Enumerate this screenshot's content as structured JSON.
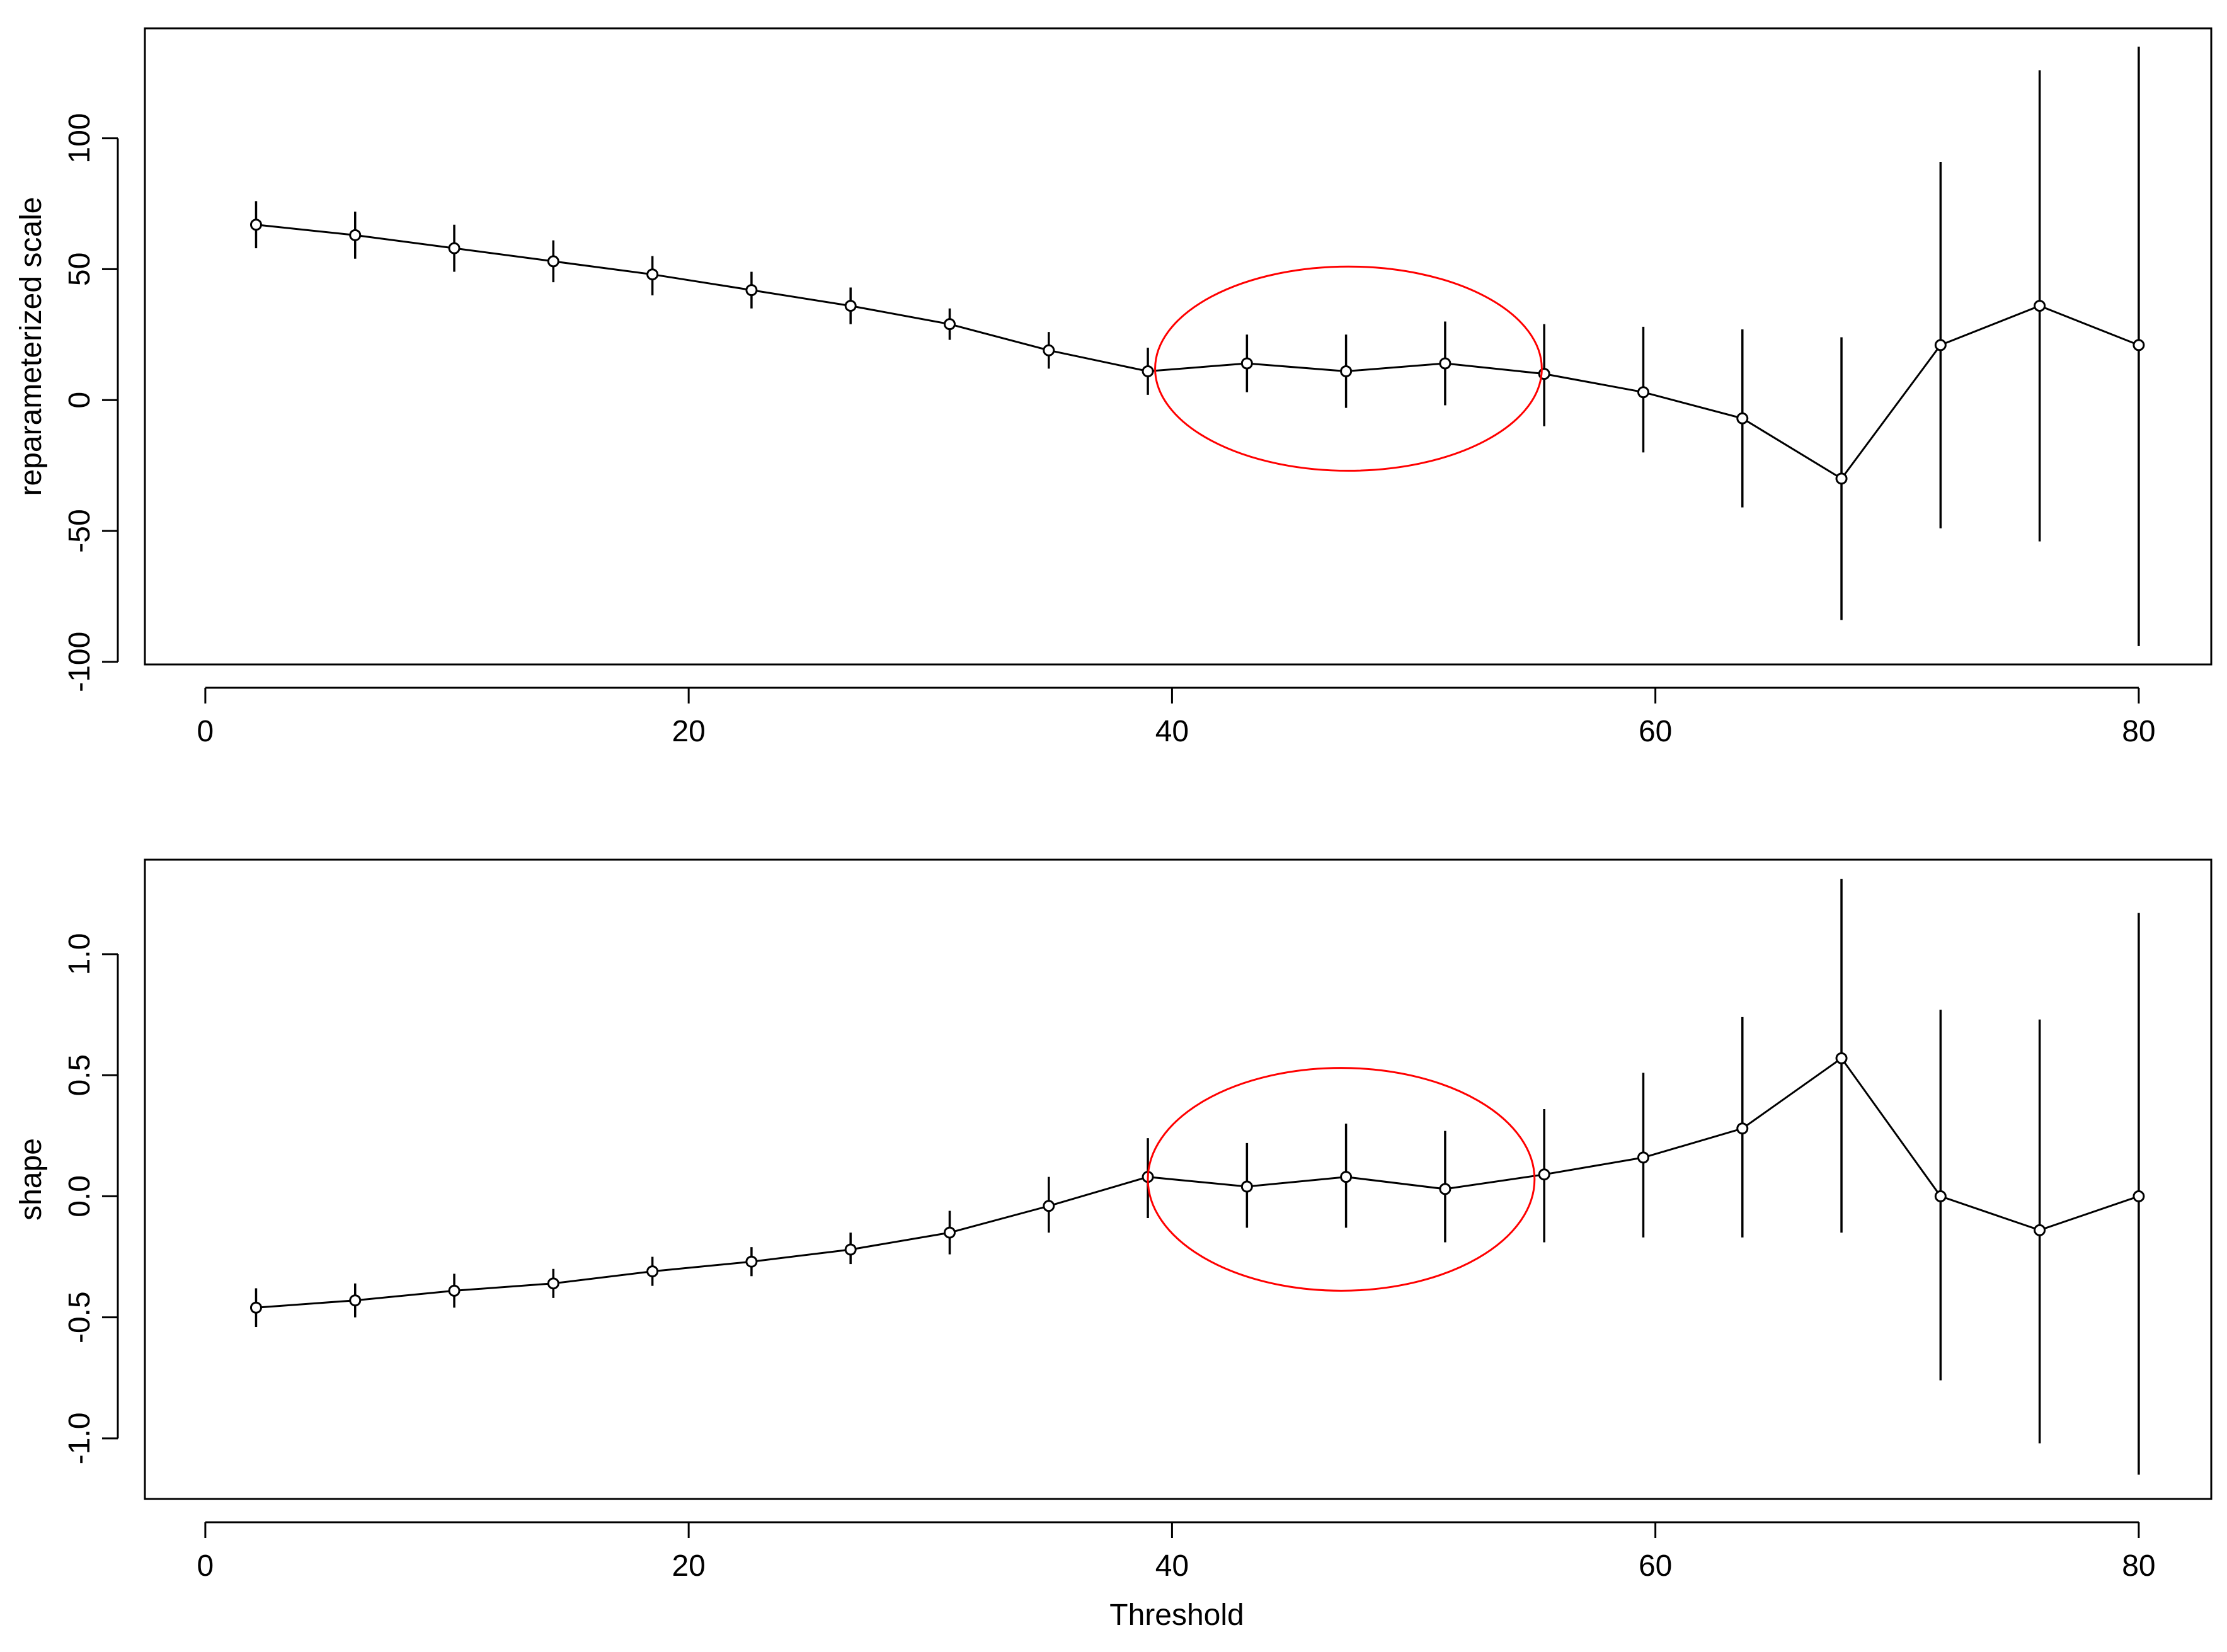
{
  "chart_data": [
    {
      "type": "line",
      "title": "",
      "xlabel": "",
      "ylabel": "reparameterized scale",
      "xlim": [
        -2.5,
        83
      ],
      "ylim": [
        -101,
        142
      ],
      "xticks": [
        0,
        20,
        40,
        60,
        80
      ],
      "xtick_labels": [
        "0",
        "20",
        "40",
        "60",
        "80"
      ],
      "yticks": [
        -100,
        -50,
        0,
        50,
        100
      ],
      "ytick_labels": [
        "-100",
        "-50",
        "0",
        "50",
        "100"
      ],
      "grid": false,
      "legend": "none",
      "series": [
        {
          "x": [
            2.1,
            6.2,
            10.3,
            14.4,
            18.5,
            22.6,
            26.7,
            30.8,
            34.9,
            39.0,
            43.1,
            47.2,
            51.3,
            55.4,
            59.5,
            63.6,
            67.7,
            71.8,
            75.9,
            80.0
          ],
          "y": [
            67,
            63,
            58,
            53,
            48,
            42,
            36,
            29,
            19,
            11,
            14,
            11,
            14,
            10,
            3,
            -7,
            -30,
            21,
            36,
            21
          ],
          "lower": [
            58,
            54,
            49,
            45,
            40,
            35,
            29,
            23,
            12,
            2,
            3,
            -3,
            -2,
            -10,
            -20,
            -41,
            -84,
            -49,
            -54,
            -94
          ],
          "upper": [
            76,
            72,
            67,
            61,
            55,
            49,
            43,
            35,
            26,
            20,
            25,
            25,
            30,
            29,
            28,
            27,
            24,
            91,
            126,
            135
          ]
        }
      ],
      "annotations": [
        {
          "type": "ellipse",
          "color": "#ff0000",
          "cx": 47.3,
          "cy": 12,
          "rx": 8.0,
          "ry": 39
        }
      ]
    },
    {
      "type": "line",
      "title": "",
      "xlabel": "Threshold",
      "ylabel": "shape",
      "xlim": [
        -2.5,
        83
      ],
      "ylim": [
        -1.25,
        1.39
      ],
      "xticks": [
        0,
        20,
        40,
        60,
        80
      ],
      "xtick_labels": [
        "0",
        "20",
        "40",
        "60",
        "80"
      ],
      "yticks": [
        -1.0,
        -0.5,
        0.0,
        0.5,
        1.0
      ],
      "ytick_labels": [
        "-1.0",
        "-0.5",
        "0.0",
        "0.5",
        "1.0"
      ],
      "grid": false,
      "legend": "none",
      "series": [
        {
          "x": [
            2.1,
            6.2,
            10.3,
            14.4,
            18.5,
            22.6,
            26.7,
            30.8,
            34.9,
            39.0,
            43.1,
            47.2,
            51.3,
            55.4,
            59.5,
            63.6,
            67.7,
            71.8,
            75.9,
            80.0
          ],
          "y": [
            -0.46,
            -0.43,
            -0.39,
            -0.36,
            -0.31,
            -0.27,
            -0.22,
            -0.15,
            -0.04,
            0.08,
            0.04,
            0.08,
            0.03,
            0.09,
            0.16,
            0.28,
            0.57,
            0.0,
            -0.14,
            0.0
          ],
          "lower": [
            -0.54,
            -0.5,
            -0.46,
            -0.42,
            -0.37,
            -0.33,
            -0.28,
            -0.24,
            -0.15,
            -0.09,
            -0.13,
            -0.13,
            -0.19,
            -0.19,
            -0.17,
            -0.17,
            -0.15,
            -0.76,
            -1.02,
            -1.15
          ],
          "upper": [
            -0.38,
            -0.36,
            -0.32,
            -0.3,
            -0.25,
            -0.21,
            -0.15,
            -0.06,
            0.08,
            0.24,
            0.22,
            0.3,
            0.27,
            0.36,
            0.51,
            0.74,
            1.31,
            0.77,
            0.73,
            1.17
          ]
        }
      ],
      "annotations": [
        {
          "type": "ellipse",
          "color": "#ff0000",
          "cx": 47.0,
          "cy": 0.07,
          "rx": 8.0,
          "ry": 0.46
        }
      ]
    }
  ]
}
